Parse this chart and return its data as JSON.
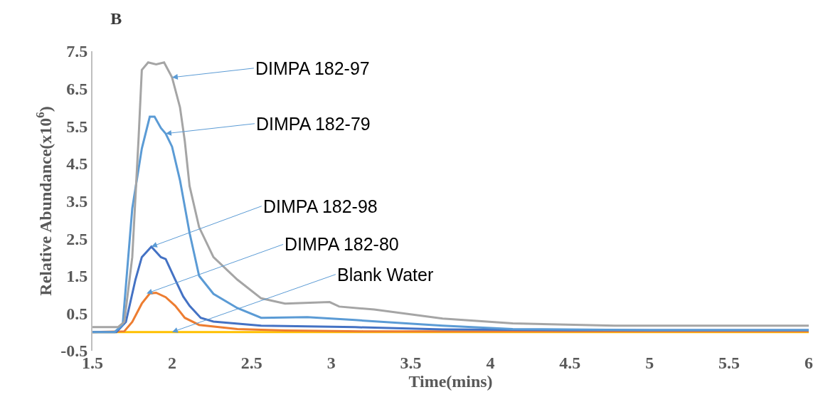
{
  "chart_data": {
    "type": "line",
    "title": "B",
    "xlabel": "Time(mins)",
    "ylabel": "Relative Abundance(x10$^{6}$)",
    "xlim": [
      1.5,
      6
    ],
    "xticks": [
      1.5,
      2,
      2.5,
      3,
      3.5,
      4,
      4.5,
      5,
      5.5,
      6
    ],
    "ylim": [
      -0.5,
      7.5
    ],
    "yticks": [
      -0.5,
      0.5,
      1.5,
      2.5,
      3.5,
      4.5,
      5.5,
      6.5,
      7.5
    ],
    "grid": false,
    "marker": "none",
    "line_style": "solid",
    "series": [
      {
        "color": "#ffc000",
        "x": [
          1.5,
          2,
          3,
          4,
          5,
          6
        ],
        "values": [
          0,
          0,
          0,
          0,
          0,
          0
        ]
      },
      {
        "color": "#ed7d31",
        "x": [
          1.5,
          1.7,
          1.75,
          1.81,
          1.86,
          1.9,
          1.96,
          2.02,
          2.08,
          2.17,
          2.41,
          2.71,
          3.2,
          4,
          5,
          6
        ],
        "values": [
          0,
          0.02,
          0.27,
          0.76,
          1.03,
          1.05,
          0.93,
          0.7,
          0.38,
          0.19,
          0.08,
          0.04,
          0.02,
          0.02,
          0.02,
          0.02
        ]
      },
      {
        "color": "#4472c4",
        "x": [
          1.5,
          1.65,
          1.71,
          1.77,
          1.81,
          1.87,
          1.93,
          1.96,
          2.02,
          2.07,
          2.11,
          2.18,
          2.26,
          2.56,
          3.15,
          3.7,
          4.5,
          6
        ],
        "values": [
          0,
          0,
          0.27,
          1.4,
          2.0,
          2.28,
          2.0,
          1.95,
          1.4,
          0.95,
          0.7,
          0.38,
          0.28,
          0.17,
          0.13,
          0.07,
          0.05,
          0.05
        ]
      },
      {
        "color": "#5b9bd5",
        "x": [
          1.5,
          1.64,
          1.69,
          1.75,
          1.81,
          1.86,
          1.89,
          1.93,
          1.96,
          2,
          2.05,
          2.11,
          2.17,
          2.26,
          2.41,
          2.56,
          2.85,
          3.15,
          3.7,
          4.14,
          5,
          6
        ],
        "values": [
          0,
          0,
          0.2,
          3.3,
          4.9,
          5.75,
          5.75,
          5.45,
          5.3,
          4.95,
          4.05,
          2.65,
          1.5,
          1.02,
          0.64,
          0.38,
          0.4,
          0.32,
          0.17,
          0.08,
          0.05,
          0.05
        ]
      },
      {
        "color": "#a5a5a5",
        "x": [
          1.5,
          1.66,
          1.7,
          1.75,
          1.79,
          1.81,
          1.85,
          1.9,
          1.95,
          2,
          2.05,
          2.08,
          2.11,
          2.17,
          2.26,
          2.41,
          2.56,
          2.71,
          2.99,
          3.05,
          3.27,
          3.7,
          4.14,
          4.78,
          6
        ],
        "values": [
          0.13,
          0.13,
          0.27,
          2.0,
          5.2,
          7.0,
          7.2,
          7.15,
          7.2,
          6.8,
          6.0,
          5.1,
          3.9,
          2.8,
          2.0,
          1.4,
          0.9,
          0.76,
          0.8,
          0.68,
          0.6,
          0.36,
          0.23,
          0.17,
          0.17
        ]
      }
    ],
    "annotations": [
      {
        "text": "DIMPA 182-97",
        "x": 2,
        "y": 6.8
      },
      {
        "text": "DIMPA 182-79",
        "x": 1.96,
        "y": 5.3
      },
      {
        "text": "DIMPA 182-98",
        "x": 1.87,
        "y": 2.28
      },
      {
        "text": "DIMPA 182-80",
        "x": 1.84,
        "y": 1.03
      },
      {
        "text": "Blank Water",
        "x": 2,
        "y": 0
      }
    ]
  }
}
